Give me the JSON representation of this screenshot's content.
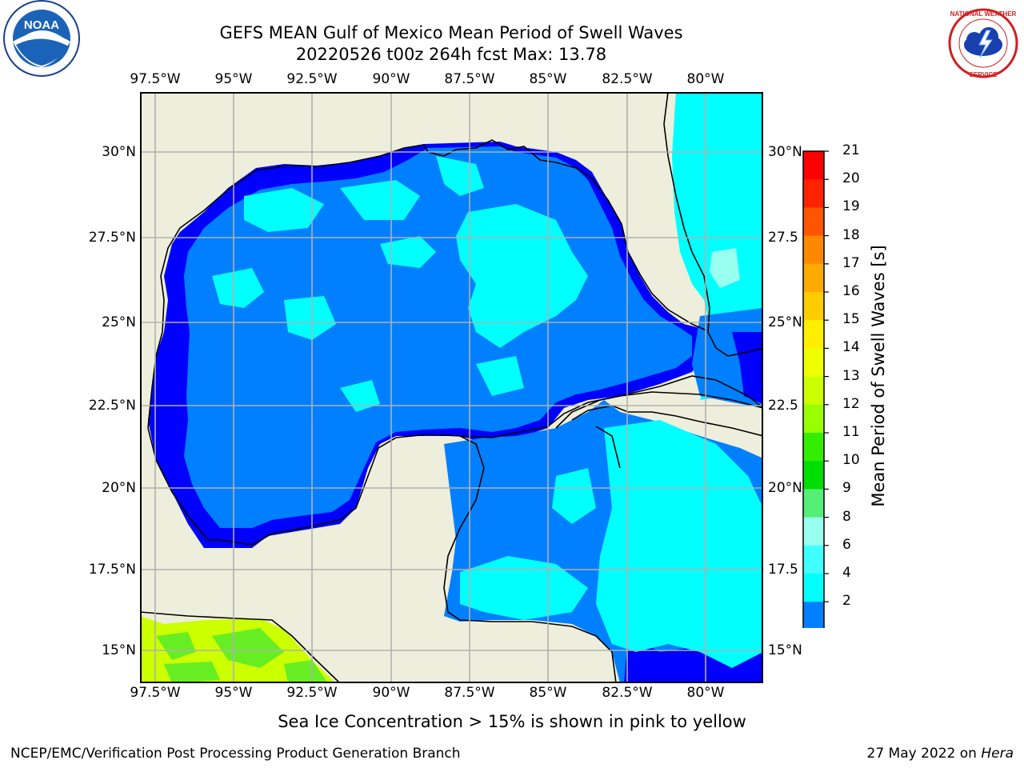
{
  "header": {
    "title": "GEFS MEAN Gulf of Mexico Mean Period of Swell Waves",
    "subtitle": "20220526 t00z 264h fcst   Max: 13.78"
  },
  "logos": {
    "noaa": {
      "text": "NOAA",
      "ring_text": "NATIONAL OCEANIC AND ATMOSPHERIC ADMINISTRATION · U.S. DEPARTMENT OF COMMERCE"
    },
    "nws": {
      "ring_text": "NATIONAL WEATHER SERVICE"
    }
  },
  "map": {
    "lon_labels": [
      "97.5°W",
      "95°W",
      "92.5°W",
      "90°W",
      "87.5°W",
      "85°W",
      "82.5°W",
      "80°W"
    ],
    "lat_labels_left": [
      "30°N",
      "27.5°N",
      "25°N",
      "22.5°N",
      "20°N",
      "17.5°N",
      "15°N"
    ],
    "lat_labels_right": [
      "30°N",
      "27.5",
      "25°N",
      "22.5",
      "20°N",
      "17.5",
      "15°N"
    ],
    "colors": {
      "land": "#eeeedc",
      "level_2_4": "#0080ff",
      "level_below_2": "#0000ff",
      "level_4_6": "#00ffff",
      "level_6_8": "#40ffff",
      "level_8_9": "#99ffee",
      "ice_yellow_green": "#ccff00",
      "ice_green": "#66ee22",
      "gridline": "#b0b0b0"
    }
  },
  "colorbar": {
    "label": "Mean Period of Swell Waves [s]",
    "ticks": [
      "21",
      "20",
      "19",
      "18",
      "17",
      "16",
      "15",
      "14",
      "13",
      "12",
      "11",
      "10",
      "9",
      "8",
      "6",
      "4",
      "2"
    ],
    "colors_top_to_bottom": [
      "#ff0000",
      "#ff2200",
      "#ff5500",
      "#ff8800",
      "#ffaa00",
      "#ffcc00",
      "#ffee00",
      "#eeff00",
      "#ccff00",
      "#99ff00",
      "#33ee00",
      "#00dd00",
      "#55ee77",
      "#99ffee",
      "#40ffff",
      "#00ffff",
      "#0080ff"
    ],
    "extend_color": "#0000ff"
  },
  "footer": {
    "note": "Sea Ice Concentration > 15% is shown in pink to yellow",
    "credit": "NCEP/EMC/Verification Post Processing Product Generation Branch",
    "date": "27 May 2022 on",
    "machine": "Hera"
  }
}
